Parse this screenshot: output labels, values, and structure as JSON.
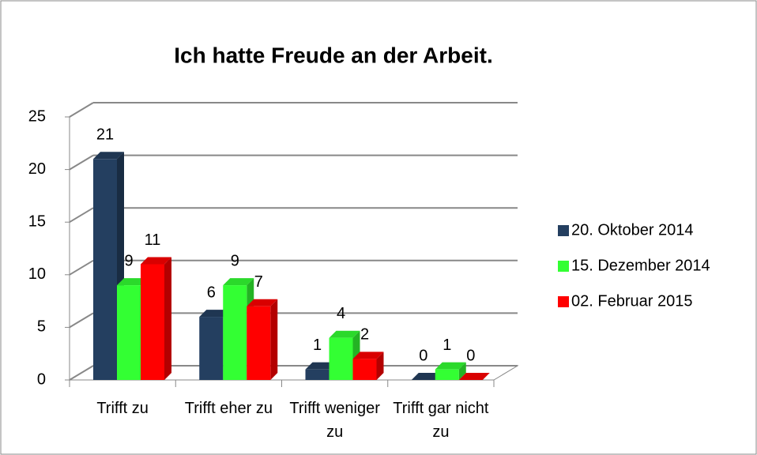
{
  "chart_data": {
    "type": "bar3d",
    "title": "Ich hatte Freude an der Arbeit.",
    "categories": [
      "Trifft zu",
      "Trifft eher zu",
      "Trifft weniger zu",
      "Trifft gar nicht zu"
    ],
    "series": [
      {
        "name": "20. Oktober 2014",
        "color": "#243f60",
        "values": [
          21,
          6,
          1,
          0
        ]
      },
      {
        "name": "15. Dezember 2014",
        "color": "#33ff33",
        "values": [
          9,
          9,
          4,
          1
        ]
      },
      {
        "name": "02. Februar 2015",
        "color": "#ff0000",
        "values": [
          11,
          7,
          2,
          0
        ]
      }
    ],
    "ylim": [
      0,
      25
    ],
    "yticks": [
      0,
      5,
      10,
      15,
      20,
      25
    ],
    "grid": true,
    "legend": "right"
  }
}
